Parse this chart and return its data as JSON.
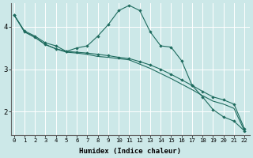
{
  "xlabel": "Humidex (Indice chaleur)",
  "bg_color": "#cce8e8",
  "grid_color": "#ffffff",
  "line_color": "#1e6b5e",
  "x_ticks": [
    0,
    1,
    2,
    3,
    4,
    5,
    6,
    7,
    8,
    9,
    10,
    11,
    12,
    13,
    14,
    15,
    16,
    17,
    18,
    19,
    20,
    21,
    22
  ],
  "y_ticks": [
    2,
    3,
    4
  ],
  "ylim": [
    1.45,
    4.55
  ],
  "xlim": [
    -0.3,
    22.5
  ],
  "line1_x": [
    0,
    1,
    2,
    3,
    4,
    5,
    6,
    7,
    8,
    9,
    10,
    11,
    12,
    13,
    14,
    15,
    16,
    17,
    18,
    19,
    20,
    21,
    22
  ],
  "line1_y": [
    4.28,
    3.9,
    3.78,
    3.62,
    3.55,
    3.42,
    3.5,
    3.55,
    3.78,
    4.05,
    4.38,
    4.5,
    4.38,
    3.88,
    3.55,
    3.52,
    3.2,
    2.62,
    2.35,
    2.05,
    1.88,
    1.78,
    1.55
  ],
  "line2_x": [
    0,
    1,
    2,
    3,
    4,
    5,
    6,
    7,
    8,
    9,
    10,
    11,
    12,
    13,
    14,
    15,
    16,
    17,
    18,
    19,
    20,
    21,
    22
  ],
  "line2_y": [
    4.28,
    3.88,
    3.75,
    3.58,
    3.48,
    3.42,
    3.4,
    3.38,
    3.35,
    3.32,
    3.28,
    3.25,
    3.18,
    3.1,
    3.0,
    2.88,
    2.75,
    2.62,
    2.48,
    2.35,
    2.28,
    2.18,
    1.6
  ],
  "line3_x": [
    0,
    1,
    2,
    3,
    4,
    5,
    6,
    7,
    8,
    9,
    10,
    11,
    12,
    13,
    14,
    15,
    16,
    17,
    18,
    19,
    20,
    21,
    22
  ],
  "line3_y": [
    4.28,
    3.88,
    3.75,
    3.58,
    3.48,
    3.4,
    3.38,
    3.35,
    3.3,
    3.28,
    3.25,
    3.22,
    3.12,
    3.02,
    2.9,
    2.78,
    2.65,
    2.52,
    2.38,
    2.25,
    2.18,
    2.08,
    1.55
  ]
}
